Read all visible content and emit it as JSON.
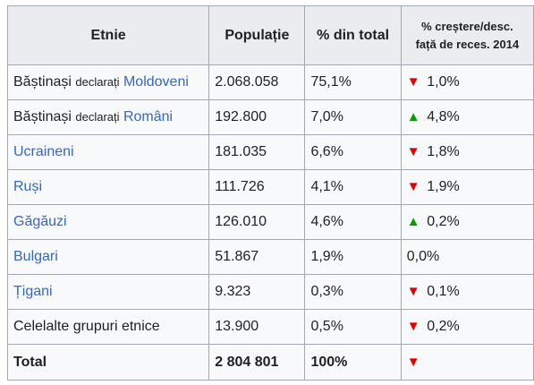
{
  "headers": {
    "etnie": "Etnie",
    "population": "Populație",
    "percent": "% din total",
    "change_line1": "% creștere/desc.",
    "change_line2": "față de reces. 2014"
  },
  "rows": [
    {
      "prefix": "Băștinași",
      "small": "declarați",
      "name": "Moldoveni",
      "name_is_link": true,
      "population": "2.068.058",
      "percent": "75,1%",
      "direction": "down",
      "change": "1,0%"
    },
    {
      "prefix": "Băștinași",
      "small": "declarați",
      "name": "Români",
      "name_is_link": true,
      "population": "192.800",
      "percent": "7,0%",
      "direction": "up",
      "change": "4,8%"
    },
    {
      "name": "Ucraineni",
      "name_is_link": true,
      "population": "181.035",
      "percent": "6,6%",
      "direction": "down",
      "change": "1,8%"
    },
    {
      "name": "Ruși",
      "name_is_link": true,
      "population": "111.726",
      "percent": "4,1%",
      "direction": "down",
      "change": "1,9%"
    },
    {
      "name": "Găgăuzi",
      "name_is_link": true,
      "population": "126.010",
      "percent": "4,6%",
      "direction": "up",
      "change": "0,2%"
    },
    {
      "name": "Bulgari",
      "name_is_link": true,
      "population": "51.867",
      "percent": "1,9%",
      "direction": "none",
      "change": "0,0%"
    },
    {
      "name": "Țigani",
      "name_is_link": true,
      "population": "9.323",
      "percent": "0,3%",
      "direction": "down",
      "change": "0,1%"
    },
    {
      "name": "Celelalte grupuri etnice",
      "name_is_link": false,
      "population": "13.900",
      "percent": "0,5%",
      "direction": "down",
      "change": "0,2%"
    }
  ],
  "total": {
    "label": "Total",
    "population": "2 804 801",
    "percent": "100%",
    "direction": "down"
  },
  "colors": {
    "link": "#3366cc",
    "arrow_down": "#e00000",
    "arrow_up": "#00a000",
    "header_bg": "#eaecf0",
    "cell_bg": "#f8f9fa",
    "border": "#a2a9b1"
  },
  "icons": {
    "down": "down-triangle-icon",
    "up": "up-triangle-icon"
  }
}
